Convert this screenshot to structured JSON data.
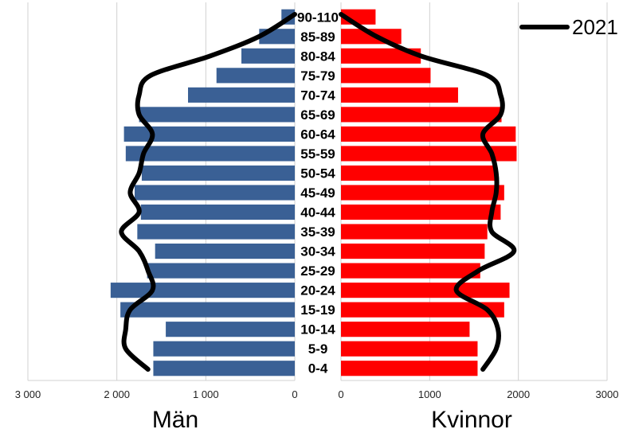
{
  "chart_data": {
    "type": "bar",
    "orientation": "horizontal",
    "layout": "population-pyramid",
    "categories": [
      "90-110",
      "85-89",
      "80-84",
      "75-79",
      "70-74",
      "65-69",
      "60-64",
      "55-59",
      "50-54",
      "45-49",
      "40-44",
      "35-39",
      "30-34",
      "25-29",
      "20-24",
      "15-19",
      "10-14",
      "5-9",
      "0-4"
    ],
    "series": [
      {
        "name": "Män",
        "side": "left",
        "color": "#3A6095",
        "values": [
          150,
          400,
          600,
          880,
          1200,
          1750,
          1920,
          1900,
          1720,
          1800,
          1730,
          1770,
          1570,
          1660,
          2070,
          1960,
          1450,
          1590,
          1590
        ]
      },
      {
        "name": "Kvinnor",
        "side": "right",
        "color": "#FF0000",
        "values": [
          390,
          680,
          900,
          1010,
          1320,
          1810,
          1970,
          1980,
          1750,
          1840,
          1800,
          1650,
          1620,
          1570,
          1900,
          1840,
          1450,
          1540,
          1540
        ]
      },
      {
        "name": "2021",
        "type": "line",
        "color": "#000000",
        "left_values": [
          0,
          400,
          950,
          1620,
          1750,
          1750,
          1600,
          1700,
          1750,
          1850,
          1750,
          1950,
          1750,
          1650,
          1600,
          1850,
          1900,
          1900,
          1650
        ],
        "right_values": [
          0,
          400,
          900,
          1650,
          1800,
          1800,
          1600,
          1700,
          1750,
          1750,
          1700,
          1700,
          1950,
          1550,
          1300,
          1650,
          1770,
          1750,
          1600
        ]
      }
    ],
    "left_axis": {
      "title": "Män",
      "ticks": [
        "3 000",
        "2 000",
        "1 000",
        "0"
      ],
      "tick_values": [
        3000,
        2000,
        1000,
        0
      ],
      "range": [
        0,
        3000
      ]
    },
    "right_axis": {
      "title": "Kvinnor",
      "ticks": [
        "0",
        "1000",
        "2000",
        "3000"
      ],
      "tick_values": [
        0,
        1000,
        2000,
        3000
      ],
      "range": [
        0,
        3000
      ]
    },
    "grid": true,
    "legend": {
      "label": "2021",
      "position": "top-right"
    }
  }
}
